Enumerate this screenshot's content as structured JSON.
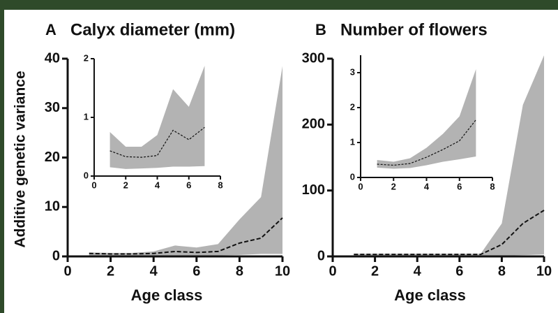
{
  "chart_data": [
    {
      "type": "line",
      "panel": "A",
      "title": "Calyx diameter (mm)",
      "y_label": "Additive genetic variance",
      "x_label": "Age class",
      "x": [
        1,
        2,
        3,
        4,
        5,
        6,
        7,
        8,
        9,
        10
      ],
      "values": [
        0.6,
        0.5,
        0.5,
        0.6,
        1.0,
        0.8,
        1.0,
        2.7,
        3.7,
        7.8
      ],
      "upper": [
        0.8,
        0.7,
        0.7,
        1.0,
        2.2,
        1.8,
        2.5,
        7.5,
        12,
        38.5
      ],
      "lower": [
        0.2,
        0.1,
        0.1,
        0.2,
        0.2,
        0.2,
        0.2,
        0.3,
        0.5,
        0.5
      ],
      "xlim": [
        0,
        10
      ],
      "xticks": [
        0,
        2,
        4,
        6,
        8,
        10
      ],
      "ylim": [
        0,
        40
      ],
      "yticks": [
        0,
        10,
        20,
        30,
        40
      ],
      "line_color": "#111111",
      "band_color": "#b3b3b3"
    },
    {
      "type": "line",
      "x": [
        1,
        2,
        3,
        4,
        5,
        6,
        7
      ],
      "values": [
        0.43,
        0.33,
        0.32,
        0.35,
        0.78,
        0.62,
        0.83
      ],
      "upper": [
        0.75,
        0.5,
        0.5,
        0.7,
        1.48,
        1.18,
        1.88
      ],
      "lower": [
        0.15,
        0.12,
        0.13,
        0.14,
        0.16,
        0.16,
        0.17
      ],
      "xlim": [
        0,
        8
      ],
      "xticks": [
        0,
        2,
        4,
        6,
        8
      ],
      "ylim": [
        0,
        2
      ],
      "yticks": [
        0,
        1,
        2
      ],
      "line_color": "#111111",
      "band_color": "#b3b3b3"
    },
    {
      "type": "line",
      "panel": "B",
      "title": "Number of flowers",
      "x_label": "Age class",
      "x": [
        1,
        2,
        3,
        4,
        5,
        6,
        7,
        8,
        9,
        10
      ],
      "values": [
        3,
        3,
        3,
        3,
        3,
        3,
        3,
        18,
        50,
        70
      ],
      "upper": [
        4,
        4,
        4,
        4,
        4,
        4,
        4,
        50,
        230,
        305
      ],
      "lower": [
        1,
        1,
        1,
        1,
        1,
        1,
        1,
        1,
        2,
        3
      ],
      "xlim": [
        0,
        10
      ],
      "xticks": [
        0,
        2,
        4,
        6,
        8,
        10
      ],
      "ylim": [
        0,
        300
      ],
      "yticks": [
        0,
        100,
        200,
        300
      ],
      "line_color": "#111111",
      "band_color": "#b3b3b3"
    },
    {
      "type": "line",
      "x": [
        1,
        2,
        3,
        4,
        5,
        6,
        7
      ],
      "values": [
        0.38,
        0.35,
        0.4,
        0.58,
        0.8,
        1.05,
        1.65
      ],
      "upper": [
        0.5,
        0.45,
        0.55,
        0.85,
        1.25,
        1.75,
        3.1
      ],
      "lower": [
        0.28,
        0.25,
        0.27,
        0.35,
        0.45,
        0.52,
        0.6
      ],
      "xlim": [
        0,
        8
      ],
      "xticks": [
        0,
        2,
        4,
        6,
        8
      ],
      "ylim": [
        0,
        3.5
      ],
      "yticks": [
        0,
        1,
        2,
        3
      ],
      "line_color": "#111111",
      "band_color": "#b3b3b3"
    }
  ]
}
